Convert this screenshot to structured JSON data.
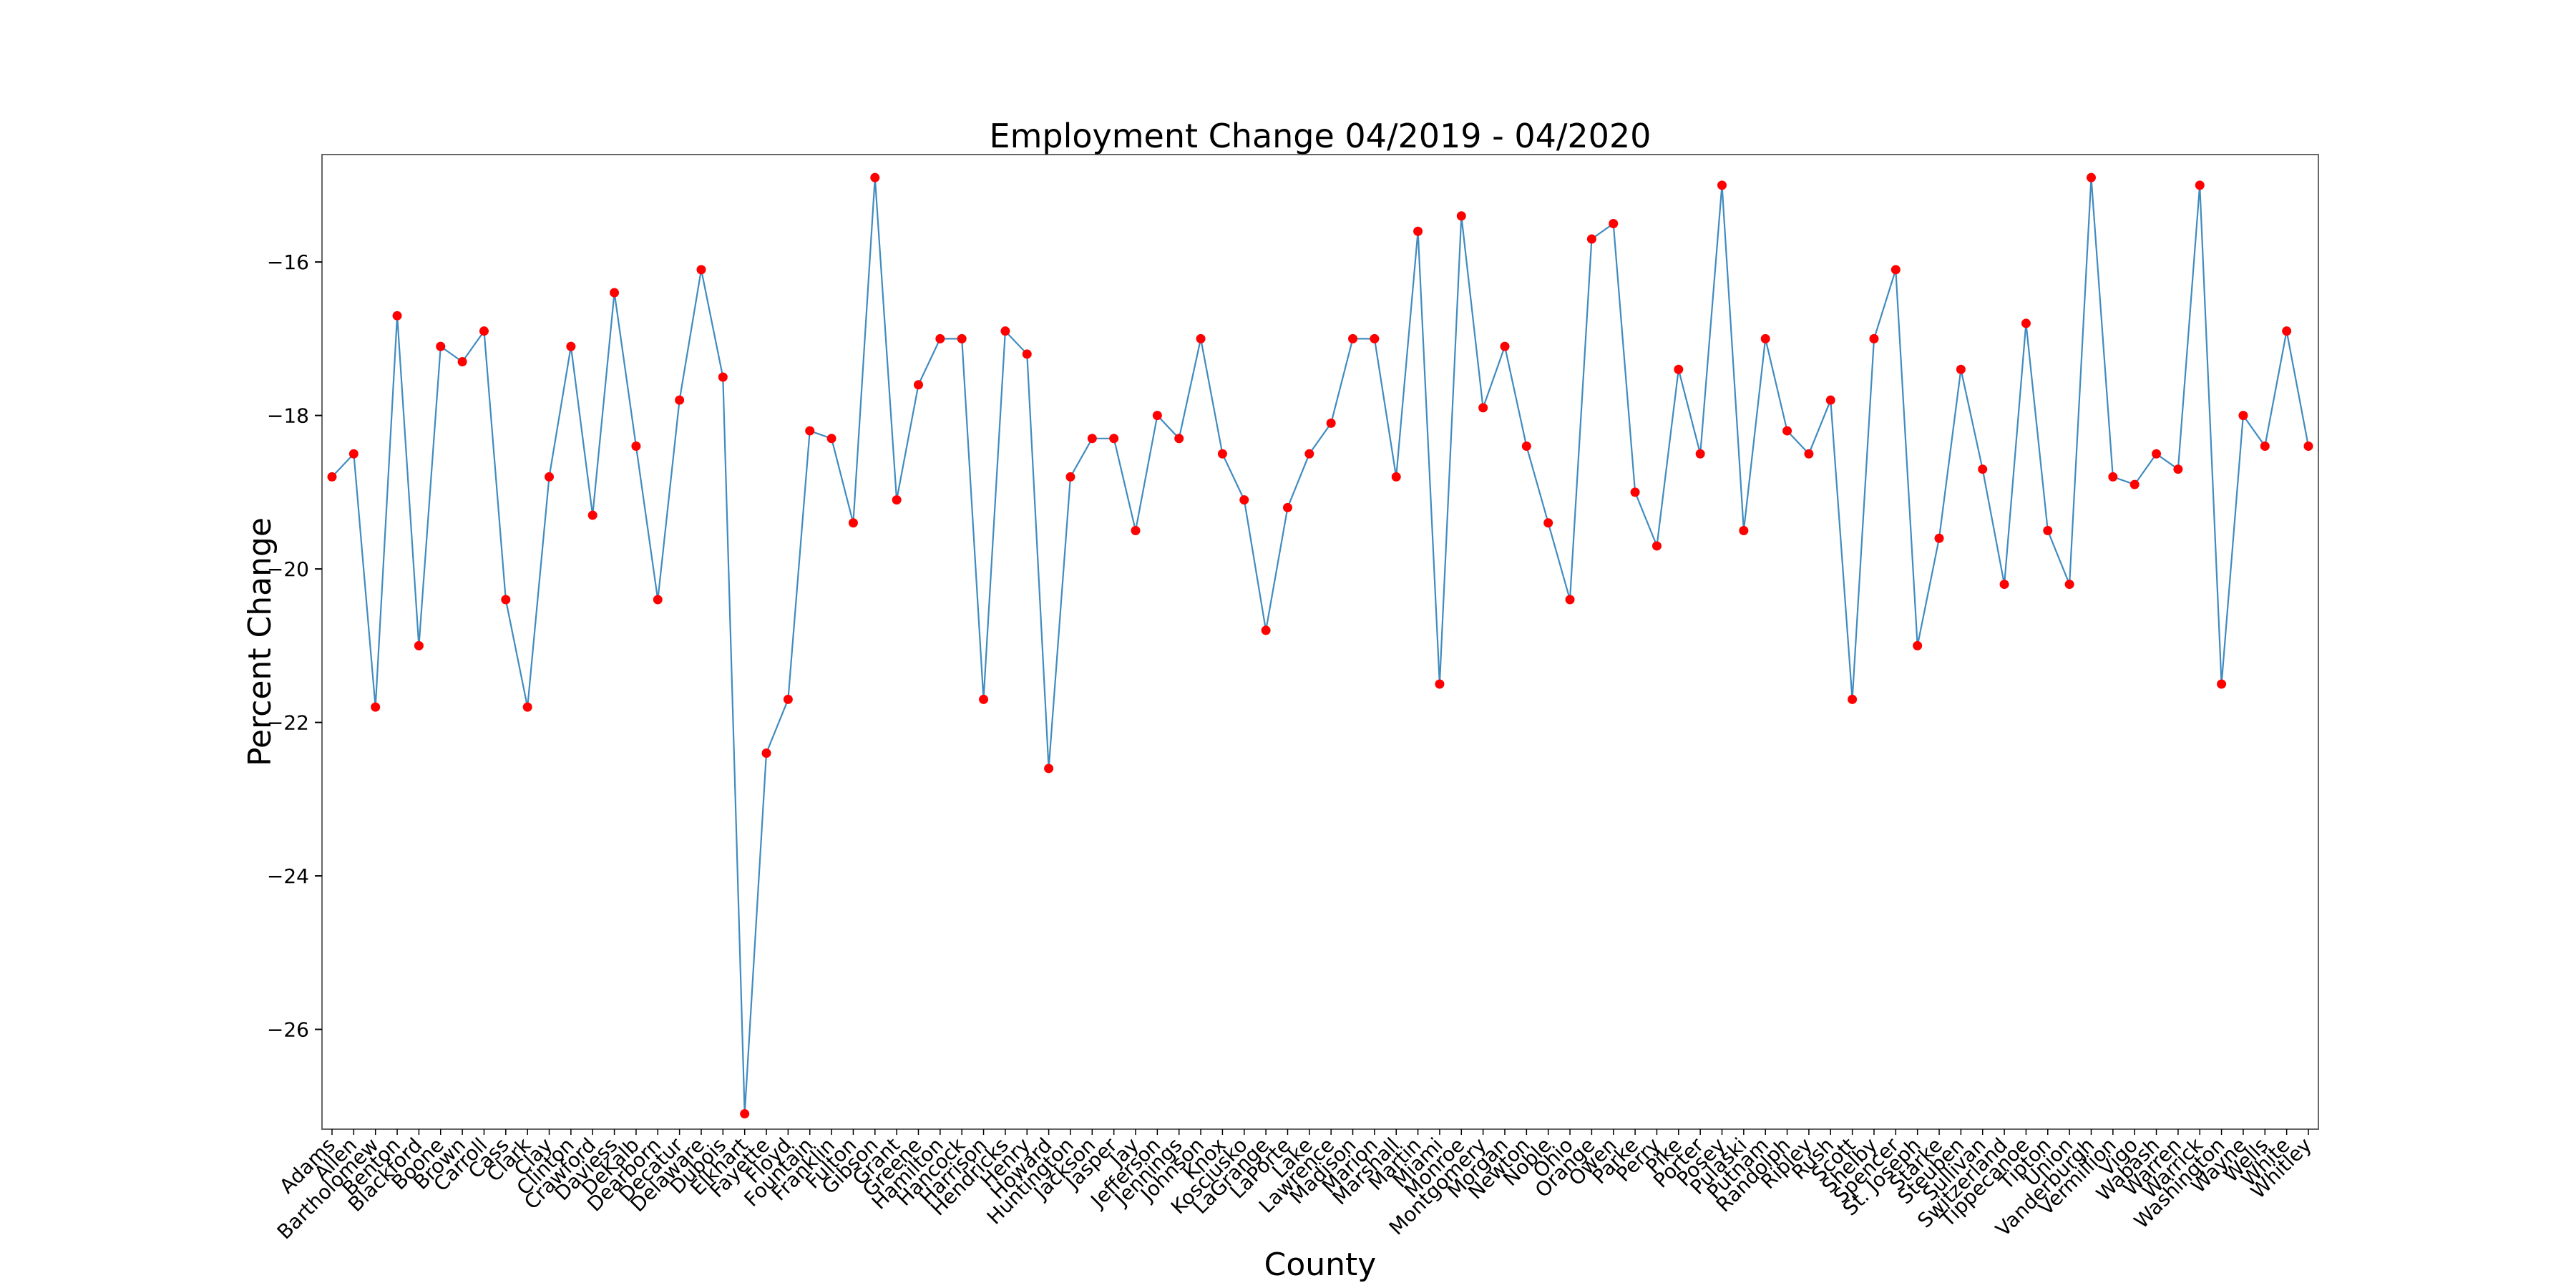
{
  "chart_data": {
    "type": "line",
    "title": "Employment Change 04/2019 - 04/2020",
    "xlabel": "County",
    "ylabel": "Percent Change",
    "ylim": [
      -27.3,
      -14.6
    ],
    "yticks": [
      -16,
      -18,
      -20,
      -22,
      -24,
      -26
    ],
    "grid": false,
    "legend": "none",
    "line_color": "#1f77b4",
    "marker_color": "#ff0000",
    "categories": [
      "Adams",
      "Allen",
      "Bartholomew",
      "Benton",
      "Blackford",
      "Boone",
      "Brown",
      "Carroll",
      "Cass",
      "Clark",
      "Clay",
      "Clinton",
      "Crawford",
      "Daviess",
      "DeKalb",
      "Dearborn",
      "Decatur",
      "Delaware",
      "Dubois",
      "Elkhart",
      "Fayette",
      "Floyd",
      "Fountain",
      "Franklin",
      "Fulton",
      "Gibson",
      "Grant",
      "Greene",
      "Hamilton",
      "Hancock",
      "Harrison",
      "Hendricks",
      "Henry",
      "Howard",
      "Huntington",
      "Jackson",
      "Jasper",
      "Jay",
      "Jefferson",
      "Jennings",
      "Johnson",
      "Knox",
      "Kosciusko",
      "LaGrange",
      "LaPorte",
      "Lake",
      "Lawrence",
      "Madison",
      "Marion",
      "Marshall",
      "Martin",
      "Miami",
      "Monroe",
      "Montgomery",
      "Morgan",
      "Newton",
      "Noble",
      "Ohio",
      "Orange",
      "Owen",
      "Parke",
      "Perry",
      "Pike",
      "Porter",
      "Posey",
      "Pulaski",
      "Putnam",
      "Randolph",
      "Ripley",
      "Rush",
      "Scott",
      "Shelby",
      "Spencer",
      "St. Joseph",
      "Starke",
      "Steuben",
      "Sullivan",
      "Switzerland",
      "Tippecanoe",
      "Tipton",
      "Union",
      "Vanderburgh",
      "Vermillion",
      "Vigo",
      "Wabash",
      "Warren",
      "Warrick",
      "Washington",
      "Wayne",
      "Wells",
      "White",
      "Whitley"
    ],
    "values": [
      -18.8,
      -18.5,
      -21.8,
      -16.7,
      -21.0,
      -17.1,
      -17.3,
      -16.9,
      -20.4,
      -21.8,
      -18.8,
      -17.1,
      -19.3,
      -16.4,
      -18.4,
      -20.4,
      -17.8,
      -16.1,
      -17.5,
      -27.1,
      -22.4,
      -21.7,
      -18.2,
      -18.3,
      -19.4,
      -14.9,
      -19.1,
      -17.6,
      -17.0,
      -17.0,
      -21.7,
      -16.9,
      -17.2,
      -22.6,
      -18.8,
      -18.3,
      -18.3,
      -19.5,
      -18.0,
      -18.3,
      -17.0,
      -18.5,
      -19.1,
      -20.8,
      -19.2,
      -18.5,
      -18.1,
      -17.0,
      -17.0,
      -18.8,
      -15.6,
      -21.5,
      -15.4,
      -17.9,
      -17.1,
      -18.4,
      -19.4,
      -20.4,
      -15.7,
      -15.5,
      -19.0,
      -19.7,
      -17.4,
      -18.5,
      -15.0,
      -19.5,
      -17.0,
      -18.2,
      -18.5,
      -17.8,
      -21.7,
      -17.0,
      -16.1,
      -21.0,
      -19.6,
      -17.4,
      -18.7,
      -20.2,
      -16.8,
      -19.5,
      -20.2,
      -14.9,
      -18.8,
      -18.9,
      -18.5,
      -18.7,
      -15.0,
      -21.5,
      -18.0,
      -18.4,
      -16.9,
      -18.4
    ]
  }
}
